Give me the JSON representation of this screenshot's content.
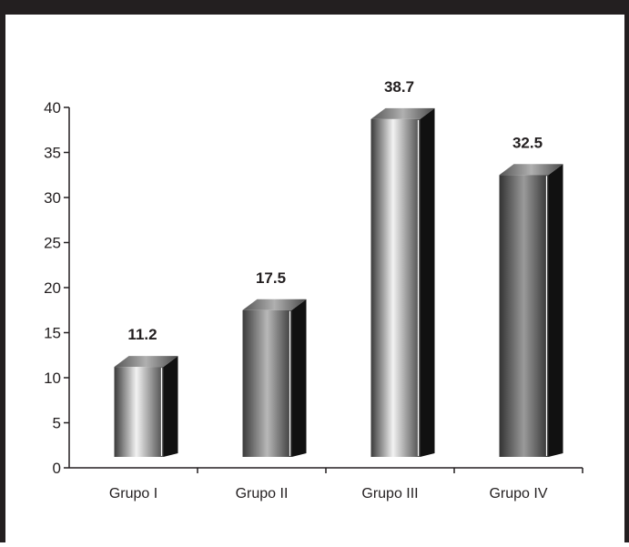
{
  "chart_data": {
    "type": "bar",
    "categories": [
      "Grupo I",
      "Grupo II",
      "Grupo III",
      "Grupo IV"
    ],
    "values": [
      11.2,
      17.5,
      38.7,
      32.5
    ],
    "data_labels": [
      "11.2",
      "17.5",
      "38.7",
      "32.5"
    ],
    "title": "",
    "xlabel": "",
    "ylabel": "",
    "ylim": [
      0,
      40
    ],
    "yticks": [
      "0",
      "5",
      "10",
      "15",
      "20",
      "25",
      "30",
      "35",
      "40"
    ],
    "grid": false,
    "legend": "none",
    "style": "3d-cylinder-bars",
    "colors": {
      "frame_band": "#231f20",
      "frame_border": "#231f20",
      "axis": "#231f20",
      "bar_light": "#f2f2f2",
      "bar_mid": "#8c8c8c",
      "bar_dark": "#3a3a3a",
      "bar_side": "#111111"
    }
  }
}
